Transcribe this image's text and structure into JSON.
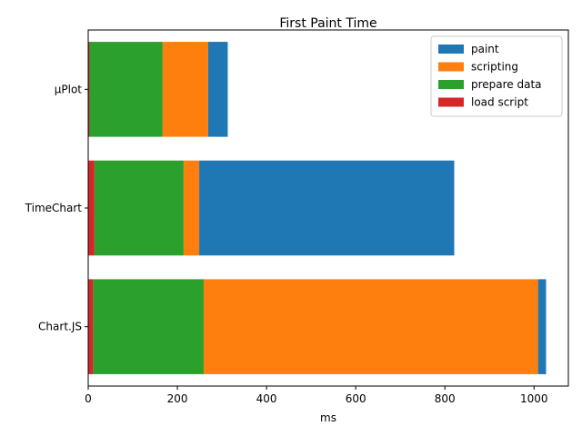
{
  "chart_data": {
    "type": "bar",
    "orientation": "horizontal",
    "stacked": true,
    "title": "First Paint Time",
    "xlabel": "ms",
    "ylabel": "",
    "xlim": [
      0,
      1077
    ],
    "xticks": [
      0,
      200,
      400,
      600,
      800,
      1000
    ],
    "categories": [
      "μPlot",
      "TimeChart",
      "Chart.JS"
    ],
    "series": [
      {
        "name": "load script",
        "color": "#d62728",
        "values": [
          3,
          14,
          11
        ]
      },
      {
        "name": "prepare data",
        "color": "#2ca02c",
        "values": [
          164,
          200,
          248
        ]
      },
      {
        "name": "scripting",
        "color": "#ff7f0e",
        "values": [
          102,
          35,
          750
        ]
      },
      {
        "name": "paint",
        "color": "#1f77b4",
        "values": [
          44,
          572,
          18
        ]
      }
    ],
    "legend_order": [
      "paint",
      "scripting",
      "prepare data",
      "load script"
    ],
    "legend_position": "top-right",
    "grid": false
  }
}
